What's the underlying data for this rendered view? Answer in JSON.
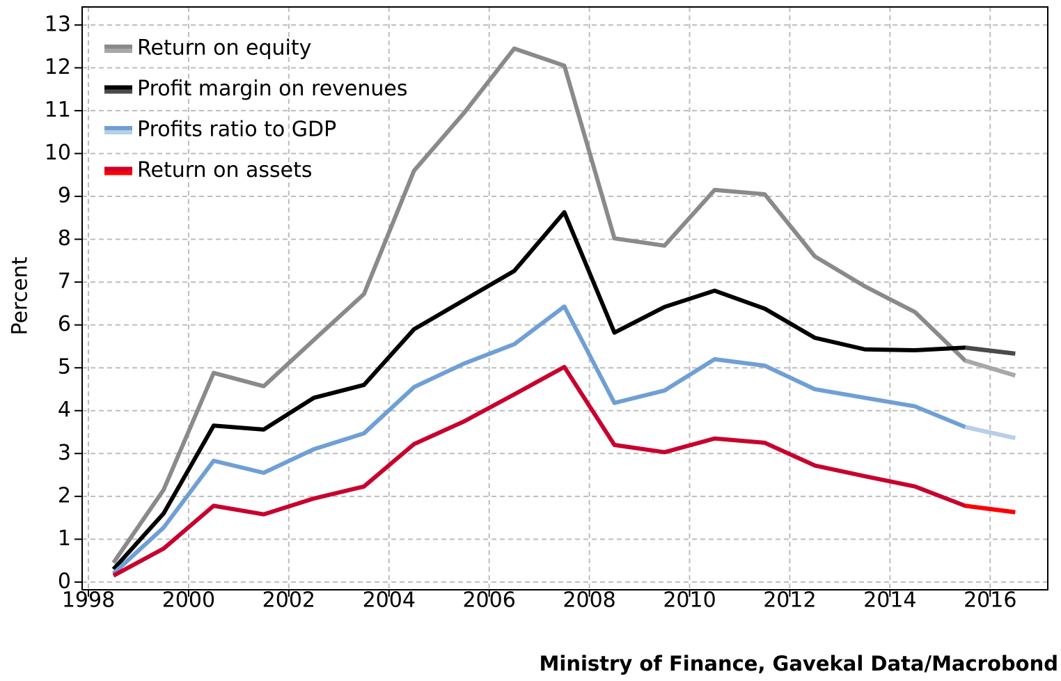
{
  "chart_data": {
    "type": "line",
    "y_label": "Percent",
    "source": "Ministry of Finance, Gavekal Data/Macrobond",
    "x": [
      1998.5,
      1999.5,
      2000.5,
      2001.5,
      2002.5,
      2003.5,
      2004.5,
      2005.5,
      2006.5,
      2007.5,
      2008.5,
      2009.5,
      2010.5,
      2011.5,
      2012.5,
      2013.5,
      2014.5,
      2015.5,
      2016.5
    ],
    "series": [
      {
        "name": "Return on equity",
        "color": "#8a8a8a",
        "recent_color": "#a8a8a8",
        "values": [
          0.45,
          2.15,
          4.88,
          4.57,
          5.65,
          6.72,
          9.6,
          10.95,
          12.45,
          12.05,
          8.02,
          7.85,
          9.15,
          9.05,
          7.6,
          6.9,
          6.3,
          5.17,
          4.82
        ]
      },
      {
        "name": "Profit margin on revenues",
        "color": "#000000",
        "recent_color": "#4a4a4a",
        "values": [
          0.3,
          1.6,
          3.65,
          3.56,
          4.3,
          4.6,
          5.9,
          6.58,
          7.26,
          8.63,
          5.82,
          6.42,
          6.8,
          6.38,
          5.7,
          5.43,
          5.41,
          5.47,
          5.33
        ]
      },
      {
        "name": "Profits ratio to GDP",
        "color": "#6f9fd4",
        "recent_color": "#b8cfe8",
        "values": [
          0.2,
          1.27,
          2.83,
          2.55,
          3.1,
          3.47,
          4.55,
          5.1,
          5.55,
          6.43,
          4.18,
          4.47,
          5.2,
          5.05,
          4.5,
          4.3,
          4.1,
          3.62,
          3.36
        ]
      },
      {
        "name": "Return on assets",
        "color": "#c8002e",
        "recent_color": "#ff0000",
        "values": [
          0.15,
          0.78,
          1.78,
          1.58,
          1.95,
          2.23,
          3.22,
          3.75,
          4.38,
          5.02,
          3.2,
          3.03,
          3.35,
          3.25,
          2.72,
          2.47,
          2.23,
          1.78,
          1.63
        ]
      }
    ],
    "xlim": [
      1997.875,
      2017.15
    ],
    "xticks": [
      1998,
      2000,
      2002,
      2004,
      2006,
      2008,
      2010,
      2012,
      2014,
      2016
    ],
    "ylim": [
      -0.18,
      13.42
    ],
    "yticks": [
      0,
      1,
      2,
      3,
      4,
      5,
      6,
      7,
      8,
      9,
      10,
      11,
      12,
      13
    ],
    "grid": true,
    "legend": "upper left"
  }
}
